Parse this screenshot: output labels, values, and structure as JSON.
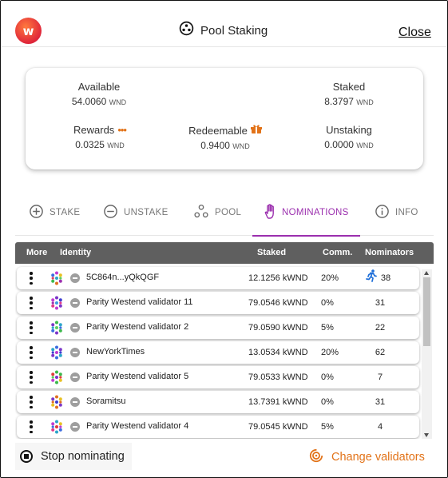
{
  "header": {
    "logo_letter": "w",
    "title": "Pool Staking",
    "close_label": "Close"
  },
  "summary": {
    "available": {
      "label": "Available",
      "value": "54.0060",
      "unit": "WND"
    },
    "staked": {
      "label": "Staked",
      "value": "8.3797",
      "unit": "WND"
    },
    "rewards": {
      "label": "Rewards",
      "value": "0.0325",
      "unit": "WND",
      "icon": "more-dots-icon"
    },
    "redeemable": {
      "label": "Redeemable",
      "value": "0.9400",
      "unit": "WND",
      "icon": "redeem-icon"
    },
    "unstaking": {
      "label": "Unstaking",
      "value": "0.0000",
      "unit": "WND"
    }
  },
  "tabs": [
    {
      "label": "STAKE",
      "icon": "plus-circle-icon",
      "active": false
    },
    {
      "label": "UNSTAKE",
      "icon": "minus-circle-icon",
      "active": false
    },
    {
      "label": "POOL",
      "icon": "pool-icon",
      "active": false
    },
    {
      "label": "NOMINATIONS",
      "icon": "hand-icon",
      "active": true
    },
    {
      "label": "INFO",
      "icon": "info-icon",
      "active": false
    }
  ],
  "table": {
    "headers": {
      "more": "More",
      "identity": "Identity",
      "staked": "Staked",
      "comm": "Comm.",
      "nominators": "Nominators"
    },
    "rows": [
      {
        "identity": "5C864n...yQkQGF",
        "staked": "12.1256 kWND",
        "comm": "20%",
        "nominators": "38",
        "oversubscribed": true
      },
      {
        "identity": "Parity Westend validator 11",
        "staked": "79.0546 kWND",
        "comm": "0%",
        "nominators": "31"
      },
      {
        "identity": "Parity Westend validator 2",
        "staked": "79.0590 kWND",
        "comm": "5%",
        "nominators": "22"
      },
      {
        "identity": "NewYorkTimes",
        "staked": "13.0534 kWND",
        "comm": "20%",
        "nominators": "62"
      },
      {
        "identity": "Parity Westend validator 5",
        "staked": "79.0533 kWND",
        "comm": "0%",
        "nominators": "7"
      },
      {
        "identity": "Soramitsu",
        "staked": "13.7391 kWND",
        "comm": "0%",
        "nominators": "31"
      },
      {
        "identity": "Parity Westend validator 4",
        "staked": "79.0545 kWND",
        "comm": "5%",
        "nominators": "4"
      }
    ]
  },
  "footer": {
    "stop_label": "Stop nominating",
    "change_label": "Change validators"
  },
  "colors": {
    "accent": "#9b2fae",
    "orange": "#e27319",
    "table_header": "#5f5f5f"
  }
}
